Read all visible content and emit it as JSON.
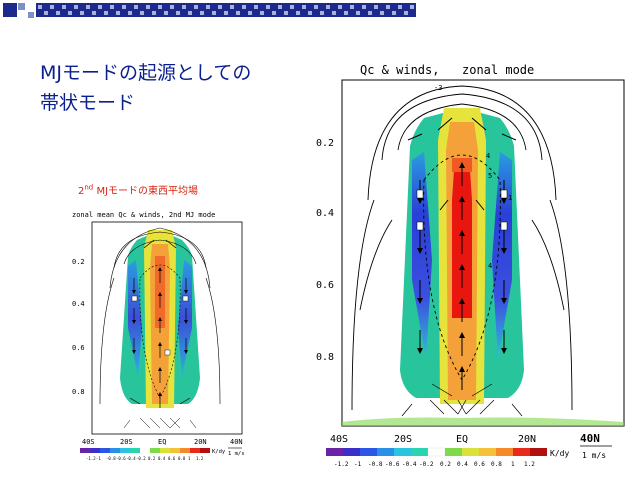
{
  "slide": {
    "title_line1": "MJモードの起源としての",
    "title_line2": "帯状モード",
    "accent_colors": [
      "#1c2a8c",
      "#7f8fc7"
    ]
  },
  "small_plot": {
    "caption_pre": "2",
    "caption_sup": "nd",
    "caption_post": " MJモードの東西平均場",
    "header": "zonal mean Qc & winds, 2nd MJ mode",
    "y_ticks": [
      "0.2",
      "0.4",
      "0.6",
      "0.8"
    ],
    "x_ticks": [
      "40S",
      "20S",
      "EQ",
      "20N",
      "40N"
    ],
    "colorbar_labels": [
      "-1.2",
      "-1",
      "-0.8",
      "-0.6",
      "-0.4",
      "-0.2",
      "0.2",
      "0.4",
      "0.6",
      "0.8",
      "1",
      "1.2"
    ],
    "colorbar_unit": "K/dy",
    "ref_vector": "1 m/s"
  },
  "big_plot": {
    "header_left": "Qc & winds,",
    "header_right": "zonal mode",
    "y_ticks": [
      "0.2",
      "0.4",
      "0.6",
      "0.8"
    ],
    "x_ticks": [
      "40S",
      "20S",
      "EQ",
      "20N",
      "40N"
    ],
    "colorbar_labels": [
      "-1.2",
      "-1",
      "-0.8",
      "-0.6",
      "-0.4",
      "-0.2",
      "0.2",
      "0.4",
      "0.6",
      "0.8",
      "1",
      "1.2"
    ],
    "colorbar_unit": "K/dy",
    "ref_vector": "1 m/s",
    "contour_labels": [
      "-3",
      "4",
      "5",
      "4",
      "1",
      "1"
    ]
  }
}
